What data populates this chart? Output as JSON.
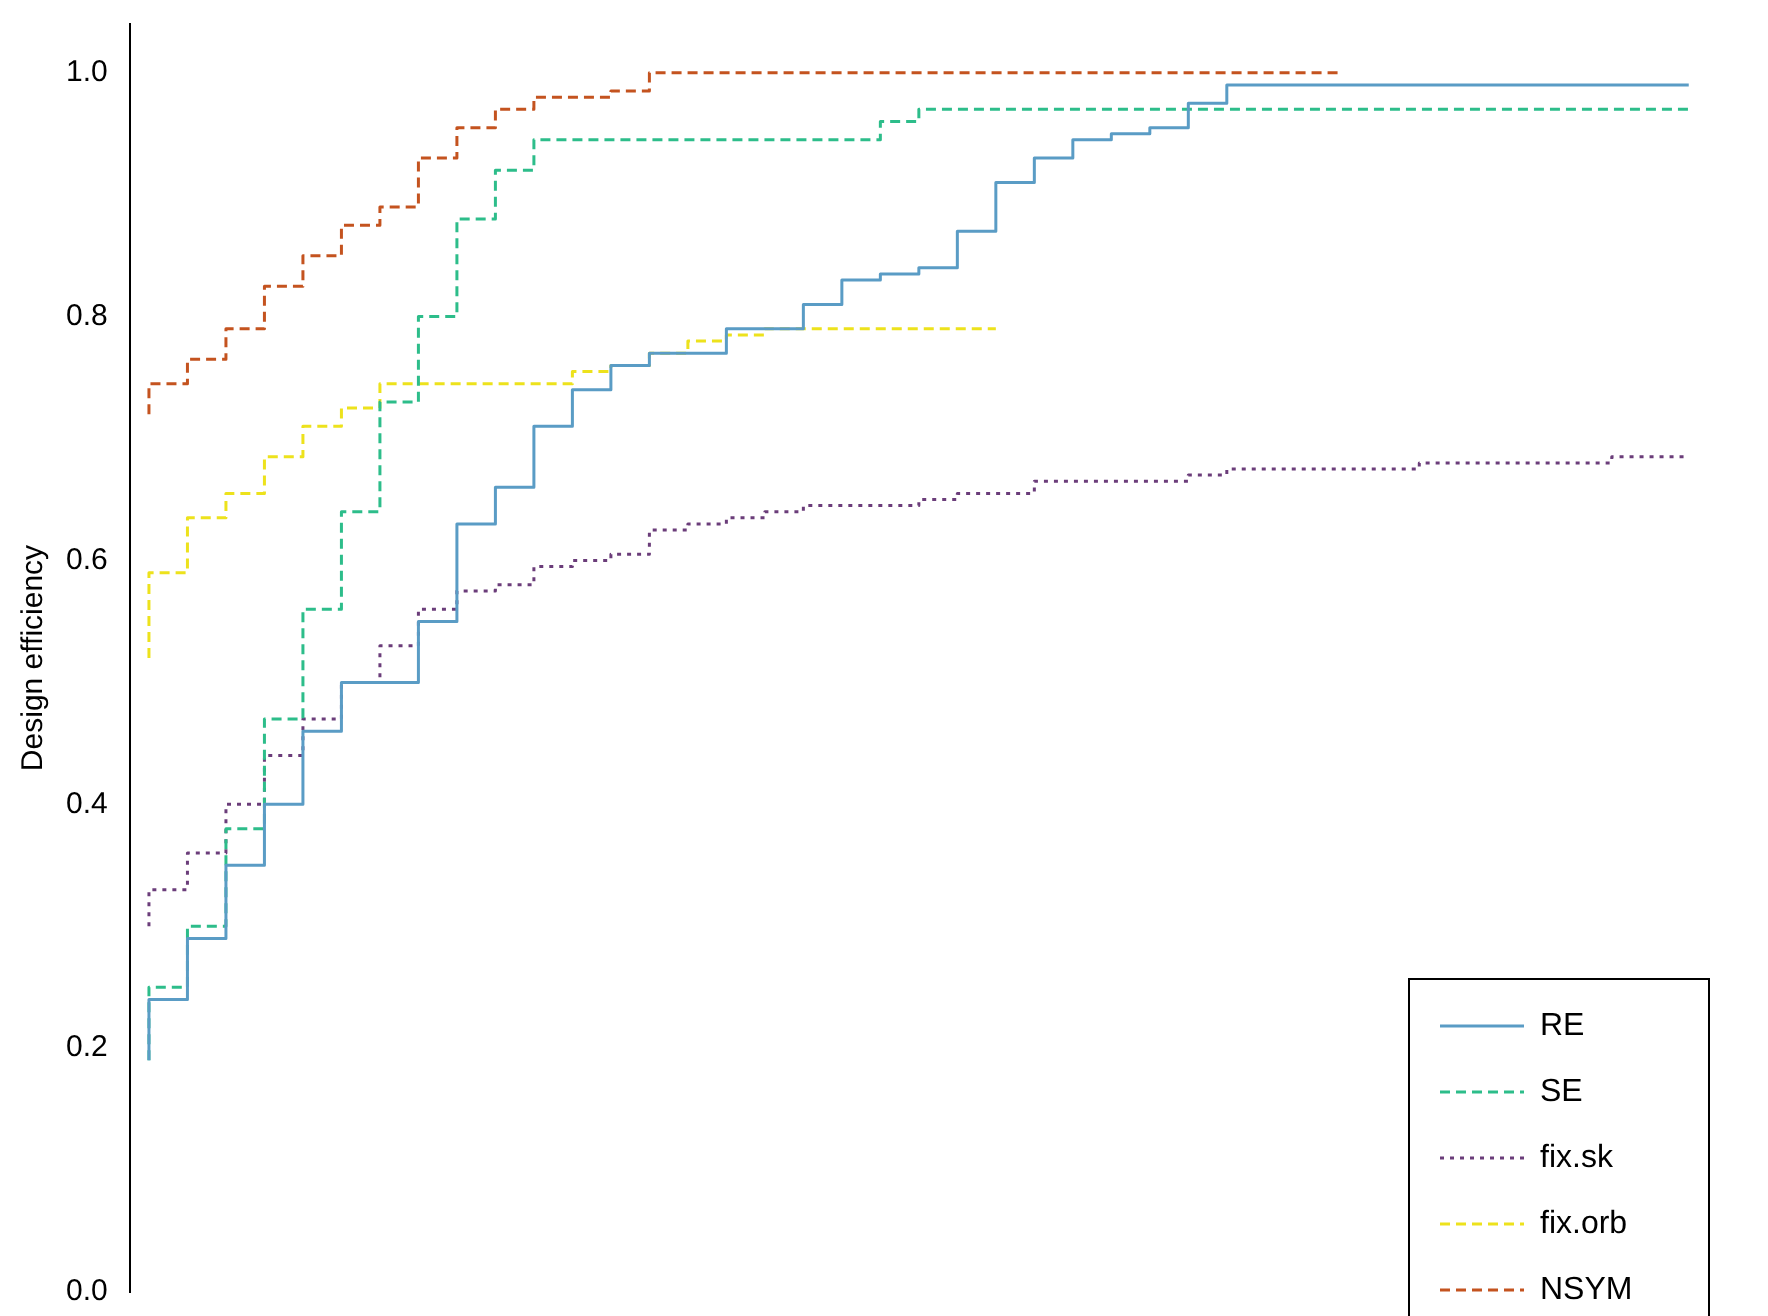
{
  "chart_data": {
    "type": "step",
    "ylabel": "Design efficiency",
    "categories": [
      null,
      null,
      null,
      null,
      null,
      null,
      null,
      null,
      null,
      null,
      null,
      null,
      null,
      null,
      null,
      null,
      null,
      null,
      null,
      null,
      null,
      null,
      null,
      null,
      null,
      null,
      null,
      null,
      null,
      null,
      null,
      null,
      null,
      null,
      null,
      null,
      null,
      null,
      null,
      null,
      null
    ],
    "ylim": [
      0,
      1.04
    ],
    "yticks": [
      {
        "value": 0,
        "label": "0.0"
      },
      0.2,
      0.4,
      0.6,
      0.8,
      {
        "value": 1,
        "label": "1.0"
      }
    ],
    "grid": false,
    "legend": "bottom right",
    "marker": "none",
    "series": [
      {
        "name": "RE",
        "color": "#5a9cc5",
        "line_style": "solid",
        "values": [
          0.19,
          0.24,
          0.29,
          0.35,
          0.4,
          0.46,
          0.5,
          0.5,
          0.55,
          0.63,
          0.66,
          0.71,
          0.74,
          0.76,
          0.77,
          0.77,
          0.79,
          0.79,
          0.81,
          0.83,
          0.835,
          0.84,
          0.87,
          0.91,
          0.93,
          0.945,
          0.95,
          0.955,
          0.975,
          0.99,
          0.99,
          0.99,
          0.99,
          0.99,
          0.99,
          0.99,
          0.99,
          0.99,
          0.99,
          0.99,
          0.99
        ]
      },
      {
        "name": "SE",
        "color": "#2dbd8a",
        "line_style": "dashed",
        "values": [
          0.19,
          0.25,
          0.3,
          0.38,
          0.47,
          0.56,
          0.64,
          0.73,
          0.8,
          0.88,
          0.92,
          0.945,
          0.945,
          0.945,
          0.945,
          0.945,
          0.945,
          0.945,
          0.945,
          0.945,
          0.96,
          0.97,
          0.97,
          0.97,
          0.97,
          0.97,
          0.97,
          0.97,
          0.97,
          0.97,
          0.97,
          0.97,
          0.97,
          0.97,
          0.97,
          0.97,
          0.97,
          0.97,
          0.97,
          0.97,
          0.97
        ]
      },
      {
        "name": "fix.sk",
        "color": "#6b3d7a",
        "line_style": "dotted",
        "values": [
          0.3,
          0.33,
          0.36,
          0.4,
          0.44,
          0.47,
          0.5,
          0.53,
          0.56,
          0.575,
          0.58,
          0.595,
          0.6,
          0.605,
          0.625,
          0.63,
          0.635,
          0.64,
          0.645,
          0.645,
          0.645,
          0.65,
          0.655,
          0.655,
          0.665,
          0.665,
          0.665,
          0.665,
          0.67,
          0.675,
          0.675,
          0.675,
          0.675,
          0.675,
          0.68,
          0.68,
          0.68,
          0.68,
          0.68,
          0.685,
          0.685
        ]
      },
      {
        "name": "fix.orb",
        "color": "#ede21c",
        "line_style": "dashed",
        "values": [
          0.52,
          0.59,
          0.635,
          0.655,
          0.685,
          0.71,
          0.725,
          0.745,
          0.745,
          0.745,
          0.745,
          0.745,
          0.755,
          0.76,
          0.77,
          0.78,
          0.785,
          0.79,
          0.79,
          0.79,
          0.79,
          0.79,
          0.79,
          null,
          null,
          null,
          null,
          null,
          null,
          null,
          null,
          null,
          null,
          null,
          null,
          null,
          null,
          null,
          null,
          null,
          null
        ]
      },
      {
        "name": "NSYM",
        "color": "#c4531f",
        "line_style": "dashed",
        "values": [
          0.72,
          0.745,
          0.765,
          0.79,
          0.825,
          0.85,
          0.875,
          0.89,
          0.93,
          0.955,
          0.97,
          0.98,
          0.98,
          0.985,
          1.0,
          1.0,
          1.0,
          1.0,
          1.0,
          1.0,
          1.0,
          1.0,
          1.0,
          1.0,
          1.0,
          1.0,
          1.0,
          1.0,
          1.0,
          1.0,
          1.0,
          1.0,
          null,
          null,
          null,
          null,
          null,
          null,
          null,
          null,
          null
        ]
      }
    ]
  }
}
